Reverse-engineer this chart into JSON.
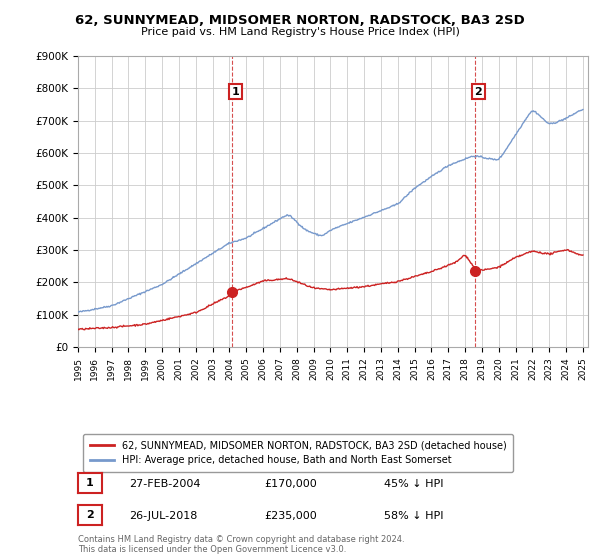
{
  "title": "62, SUNNYMEAD, MIDSOMER NORTON, RADSTOCK, BA3 2SD",
  "subtitle": "Price paid vs. HM Land Registry's House Price Index (HPI)",
  "ylim": [
    0,
    900000
  ],
  "yticks": [
    0,
    100000,
    200000,
    300000,
    400000,
    500000,
    600000,
    700000,
    800000,
    900000
  ],
  "ytick_labels": [
    "£0",
    "£100K",
    "£200K",
    "£300K",
    "£400K",
    "£500K",
    "£600K",
    "£700K",
    "£800K",
    "£900K"
  ],
  "background_color": "#ffffff",
  "plot_bg_color": "#ffffff",
  "grid_color": "#cccccc",
  "hpi_color": "#7799cc",
  "price_color": "#cc2222",
  "sale1_date": "27-FEB-2004",
  "sale1_price": 170000,
  "sale1_pct": "45% ↓ HPI",
  "sale2_date": "26-JUL-2018",
  "sale2_price": 235000,
  "sale2_pct": "58% ↓ HPI",
  "legend_label1": "62, SUNNYMEAD, MIDSOMER NORTON, RADSTOCK, BA3 2SD (detached house)",
  "legend_label2": "HPI: Average price, detached house, Bath and North East Somerset",
  "footnote": "Contains HM Land Registry data © Crown copyright and database right 2024.\nThis data is licensed under the Open Government Licence v3.0.",
  "sale1_x": 2004.15,
  "sale2_x": 2018.58
}
